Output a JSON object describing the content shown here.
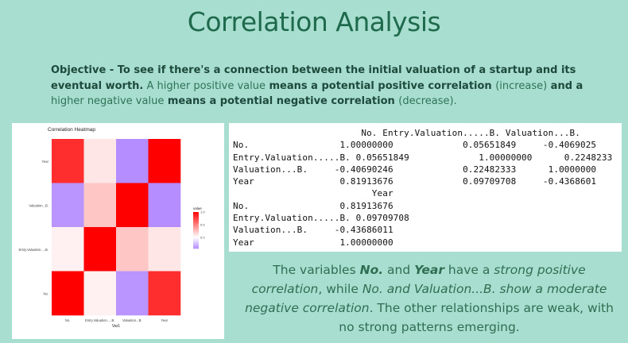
{
  "title": "Correlation Analysis",
  "objective": {
    "parts": [
      {
        "text": "Objective - To see if there's a connection between the initial valuation of a startup and its eventual worth.",
        "bold": true
      },
      {
        "text": " A ",
        "bold": false
      },
      {
        "text": "higher positive value",
        "bold": false
      },
      {
        "text": " means a potential positive correlation ",
        "bold": true
      },
      {
        "text": "(increase)",
        "bold": false
      },
      {
        "text": " and a ",
        "bold": true
      },
      {
        "text": "higher negative value",
        "bold": false
      },
      {
        "text": " means a potential negative correlation ",
        "bold": true
      },
      {
        "text": "(decrease).",
        "bold": false
      }
    ]
  },
  "summary": {
    "parts": [
      {
        "text": "The variables ",
        "style": "normal"
      },
      {
        "text": "No.",
        "style": "bold-italic"
      },
      {
        "text": " and ",
        "style": "normal"
      },
      {
        "text": "Year",
        "style": "bold-italic"
      },
      {
        "text": " have a ",
        "style": "normal"
      },
      {
        "text": "strong positive correlation",
        "style": "italic"
      },
      {
        "text": ", while ",
        "style": "normal"
      },
      {
        "text": "No. and Valuation...B. show a moderate negative correlation",
        "style": "italic"
      },
      {
        "text": ". The other relationships are weak, with no strong patterns emerging.",
        "style": "normal"
      }
    ]
  },
  "correlation_table": {
    "lines": [
      "                        No. Entry.Valuation.....B. Valuation...B.",
      "No.                 1.00000000             0.05651849     -0.4069025",
      "Entry.Valuation.....B. 0.05651849             1.00000000      0.2248233",
      "Valuation...B.     -0.40690246             0.22482333      1.0000000",
      "Year                0.81913676             0.09709708     -0.4368601",
      "                          Year",
      "No.                 0.81913676",
      "Entry.Valuation.....B. 0.09709708",
      "Valuation...B.     -0.43686011",
      "Year                1.00000000"
    ]
  },
  "chart_data": {
    "type": "heatmap",
    "title": "Correlation Heatmap",
    "xlabel": "Var1",
    "ylabel": "",
    "x_categories": [
      "No.",
      "Entry.Valuation.....B.",
      "Valuation...B.",
      "Year"
    ],
    "y_categories": [
      "No.",
      "Entry.Valuation.....B.",
      "Valuation...B.",
      "Year"
    ],
    "values": [
      [
        1.0,
        0.05651849,
        -0.40690246,
        0.81913676
      ],
      [
        0.05651849,
        1.0,
        0.22482333,
        0.09709708
      ],
      [
        -0.40690246,
        0.22482333,
        1.0,
        -0.43686011
      ],
      [
        0.81913676,
        0.09709708,
        -0.43686011,
        1.0
      ]
    ],
    "legend": {
      "title": "value",
      "ticks": [
        "1.0",
        "0.5",
        "0.0"
      ],
      "range": [
        -0.44,
        1.0
      ],
      "low_color": "#b48cff",
      "mid_color": "#ffffff",
      "high_color": "#ff0000",
      "placement": "right"
    }
  }
}
